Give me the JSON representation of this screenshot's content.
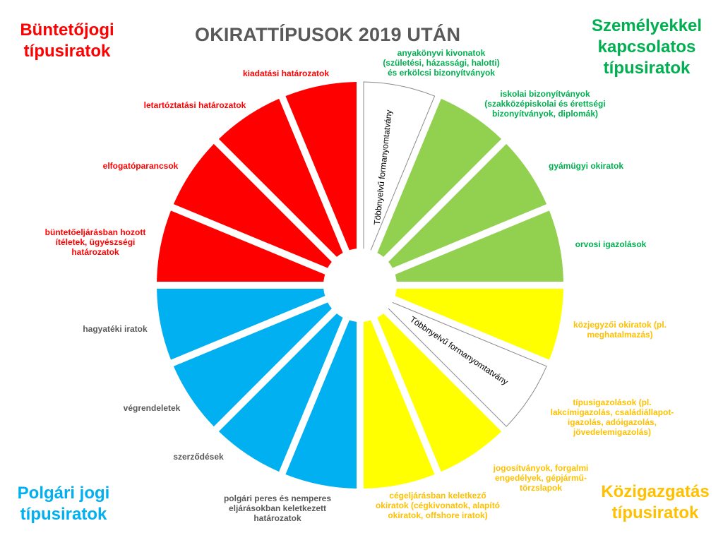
{
  "title": "OKIRATTÍPUSOK 2019 UTÁN",
  "colors": {
    "criminal": "#FF0000",
    "personal": "#92D050",
    "civil": "#00B0F0",
    "admin": "#FFFF00",
    "multilingual": "#FFFFFF",
    "criminal_text": "#FF0000",
    "personal_text": "#00B050",
    "civil_text": "#00B0F0",
    "admin_text": "#FFC000",
    "label_dark": "#595959",
    "title_text": "#595959"
  },
  "corners": {
    "criminal": [
      "Büntetőjogi",
      "típusiratok"
    ],
    "personal": [
      "Személyekkel",
      "kapcsolatos",
      "típusiratok"
    ],
    "civil": [
      "Polgári jogi",
      "típusiratok"
    ],
    "admin": [
      "Közigazgatás",
      "típusiratok"
    ]
  },
  "multilingual_label": "Többnyelvű formanyomtatvány",
  "segments": {
    "criminal": [
      [
        "kiadatási határozatok"
      ],
      [
        "letartóztatási határozatok"
      ],
      [
        "elfogatóparancsok"
      ],
      [
        "büntetőeljárásban hozott",
        "ítéletek, ügyészségi",
        "határozatok"
      ]
    ],
    "personal": [
      [
        "anyakönyvi kivonatok",
        "(születési, házassági, halotti)",
        "és erkölcsi bizonyítványok"
      ],
      [
        "iskolai bizonyítványok",
        "(szakközépiskolai és érettségi",
        "bizonyítványok, diplomák)"
      ],
      [
        "gyámügyi okiratok"
      ],
      [
        "orvosi igazolások"
      ]
    ],
    "admin": [
      [
        "közjegyzői okiratok (pl.",
        "meghatalmazás)"
      ],
      [
        "típusigazolások (pl.",
        "lakcímigazolás, családiállapot-",
        "igazolás, adóigazolás,",
        "jövedelemigazolás)"
      ],
      [
        "jogosítványok, forgalmi",
        "engedélyek, gépjármű-",
        "törzslapok"
      ],
      [
        "cégeljárásban keletkező",
        "okiratok (cégkivonatok, alapító",
        "okiratok, offshore iratok)"
      ]
    ],
    "civil": [
      [
        "hagyatéki iratok"
      ],
      [
        "végrendeletek"
      ],
      [
        "szerződések"
      ],
      [
        "polgári peres és nemperes",
        "eljárásokban keletkezett",
        "határozatok"
      ]
    ]
  }
}
